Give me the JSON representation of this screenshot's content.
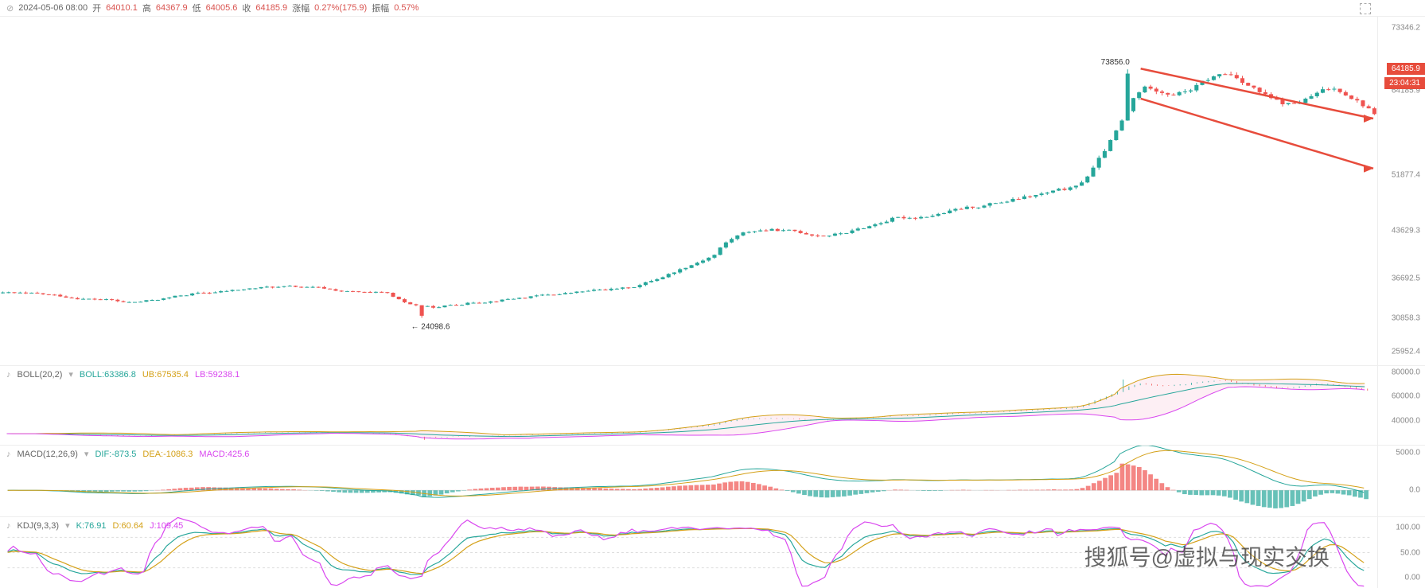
{
  "header": {
    "datetime": "2024-05-06 08:00",
    "open_label": "开",
    "open": "64010.1",
    "high_label": "高",
    "high": "64367.9",
    "low_label": "低",
    "low": "64005.6",
    "close_label": "收",
    "close": "64185.9",
    "change_label": "涨幅",
    "change": "0.27%(175.9)",
    "amp_label": "振幅",
    "amp": "0.57%"
  },
  "main_chart": {
    "ylim": [
      24000,
      75000
    ],
    "yticks": [
      73346.2,
      64185.9,
      51877.4,
      43629.3,
      36692.5,
      30858.3,
      25952.4
    ],
    "price_tag": "64185.9",
    "time_tag": "23:04:31",
    "high_annotation": "73856.0",
    "low_annotation": "24098.6",
    "colors": {
      "up": "#26a69a",
      "down": "#ef5350",
      "grid": "#f0f0f0",
      "arrow": "#e74c3c"
    },
    "candles_per_row": 240
  },
  "boll": {
    "label": "BOLL(20,2)",
    "mid_label": "BOLL:63386.8",
    "mid_color": "#26a69a",
    "ub_label": "UB:67535.4",
    "ub_color": "#d4a017",
    "lb_label": "LB:59238.1",
    "lb_color": "#d946ef",
    "yticks": [
      80000.0,
      60000.0,
      40000.0
    ],
    "ylim": [
      20000,
      85000
    ],
    "fill_color": "#fce4ec"
  },
  "macd": {
    "label": "MACD(12,26,9)",
    "dif_label": "DIF:-873.5",
    "dif_color": "#26a69a",
    "dea_label": "DEA:-1086.3",
    "dea_color": "#d4a017",
    "macd_label": "MACD:425.6",
    "macd_color": "#d946ef",
    "yticks": [
      5000.0,
      0.0
    ],
    "ylim": [
      -3500,
      6000
    ],
    "bar_up_color": "#ef5350",
    "bar_down_color": "#26a69a"
  },
  "kdj": {
    "label": "KDJ(9,3,3)",
    "k_label": "K:76.91",
    "k_color": "#26a69a",
    "d_label": "D:60.64",
    "d_color": "#d4a017",
    "j_label": "J:109.45",
    "j_color": "#d946ef",
    "yticks": [
      100.0,
      50.0,
      0.0
    ],
    "ylim": [
      -20,
      120
    ]
  },
  "watermark": "搜狐号@虚拟与现实交换"
}
